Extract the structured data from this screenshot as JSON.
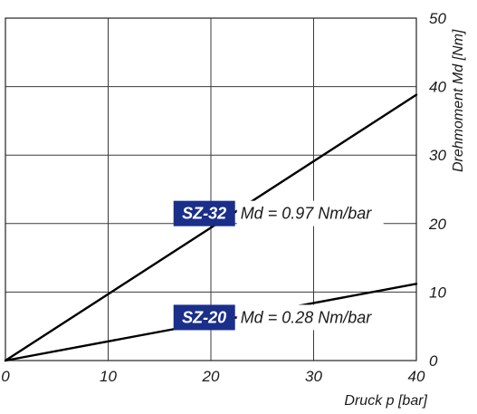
{
  "chart_data": {
    "type": "line",
    "xlabel": "Druck  p [bar]",
    "ylabel": "Drehmoment Md [Nm]",
    "xlim": [
      0,
      40
    ],
    "ylim": [
      0,
      50
    ],
    "x_ticks": [
      0,
      10,
      20,
      30,
      40
    ],
    "y_ticks": [
      0,
      10,
      20,
      30,
      40,
      50
    ],
    "grid": true,
    "series": [
      {
        "name": "SZ-32",
        "equation": "Md = 0.97 Nm/bar",
        "x": [
          0,
          40
        ],
        "y": [
          0,
          38.8
        ],
        "color": "#000000"
      },
      {
        "name": "SZ-20",
        "equation": "Md = 0.28 Nm/bar",
        "x": [
          0,
          40
        ],
        "y": [
          0,
          11.2
        ],
        "color": "#000000"
      }
    ],
    "label_box_color": "#1a2f8a"
  }
}
